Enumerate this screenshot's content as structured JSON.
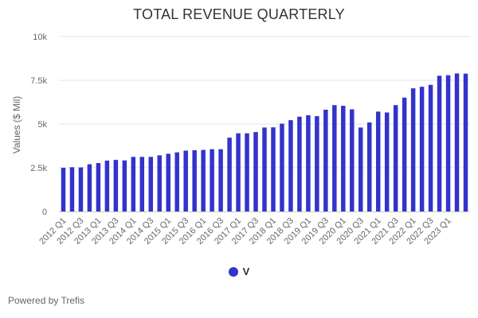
{
  "chart_data": {
    "type": "bar",
    "title": "TOTAL REVENUE QUARTERLY",
    "ylabel": "Values ($ Mil)",
    "ylim": [
      0,
      10000
    ],
    "y_ticks": [
      0,
      2500,
      5000,
      7500,
      10000
    ],
    "y_tick_labels": [
      "0",
      "2.5k",
      "5k",
      "7.5k",
      "10k"
    ],
    "grid": true,
    "legend_position": "bottom-center",
    "series_color": "#3333cc",
    "categories": [
      "2012 Q1",
      "2012 Q2",
      "2012 Q3",
      "2012 Q4",
      "2013 Q1",
      "2013 Q2",
      "2013 Q3",
      "2013 Q4",
      "2014 Q1",
      "2014 Q2",
      "2014 Q3",
      "2014 Q4",
      "2015 Q1",
      "2015 Q2",
      "2015 Q3",
      "2015 Q4",
      "2016 Q1",
      "2016 Q2",
      "2016 Q3",
      "2016 Q4",
      "2017 Q1",
      "2017 Q2",
      "2017 Q3",
      "2017 Q4",
      "2018 Q1",
      "2018 Q2",
      "2018 Q3",
      "2018 Q4",
      "2019 Q1",
      "2019 Q2",
      "2019 Q3",
      "2019 Q4",
      "2020 Q1",
      "2020 Q2",
      "2020 Q3",
      "2020 Q4",
      "2021 Q1",
      "2021 Q2",
      "2021 Q3",
      "2021 Q4",
      "2022 Q1",
      "2022 Q2",
      "2022 Q3",
      "2022 Q4",
      "2023 Q1",
      "2023 Q2",
      "2023 Q3"
    ],
    "tick_labels": [
      "2012 Q1",
      "2012 Q3",
      "2013 Q1",
      "2013 Q3",
      "2014 Q1",
      "2014 Q3",
      "2015 Q1",
      "2015 Q3",
      "2016 Q1",
      "2016 Q3",
      "2017 Q1",
      "2017 Q3",
      "2018 Q1",
      "2018 Q3",
      "2019 Q1",
      "2019 Q3",
      "2020 Q1",
      "2020 Q3",
      "2021 Q1",
      "2021 Q3",
      "2022 Q1",
      "2022 Q3",
      "2023 Q1"
    ],
    "series": [
      {
        "name": "V",
        "values": [
          2500,
          2530,
          2520,
          2700,
          2770,
          2910,
          2950,
          2920,
          3120,
          3120,
          3120,
          3210,
          3300,
          3380,
          3480,
          3500,
          3520,
          3560,
          3560,
          4220,
          4470,
          4470,
          4540,
          4800,
          4810,
          5020,
          5220,
          5420,
          5500,
          5450,
          5820,
          6080,
          6040,
          5840,
          4800,
          5090,
          5710,
          5660,
          6080,
          6510,
          7040,
          7130,
          7240,
          7760,
          7790,
          7890,
          7880
        ]
      }
    ]
  },
  "legend": {
    "label": "V"
  },
  "footer": {
    "text": "Powered by Trefis"
  }
}
